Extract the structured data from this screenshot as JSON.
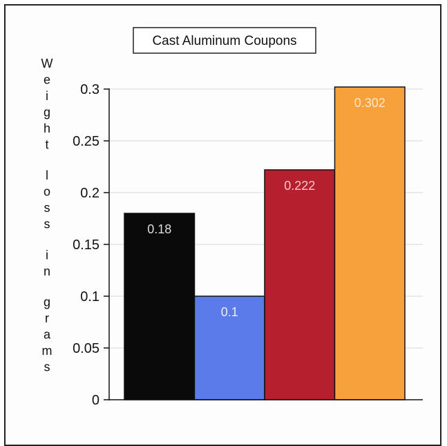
{
  "chart_data": {
    "type": "bar",
    "title": "Cast Aluminum Coupons",
    "xlabel": "",
    "ylabel": "Weight loss in grams",
    "categories": [
      "",
      "",
      "",
      ""
    ],
    "values": [
      0.18,
      0.1,
      0.222,
      0.302
    ],
    "value_labels": [
      "0.18",
      "0.1",
      "0.222",
      "0.302"
    ],
    "colors": [
      "#0a0a0a",
      "#5b7bea",
      "#b51f2e",
      "#f7a13c"
    ],
    "label_colors": [
      "#dddddd",
      "#eeeeee",
      "#f3c9c9",
      "#fde7c8"
    ],
    "ylim": [
      0,
      0.3
    ],
    "yticks": [
      0,
      0.05,
      0.1,
      0.15,
      0.2,
      0.25,
      0.3
    ],
    "ytick_labels": [
      "0",
      "0.05",
      "0.1",
      "0.15",
      "0.2",
      "0.25",
      "0.3"
    ],
    "grid": true,
    "legend": "none"
  }
}
